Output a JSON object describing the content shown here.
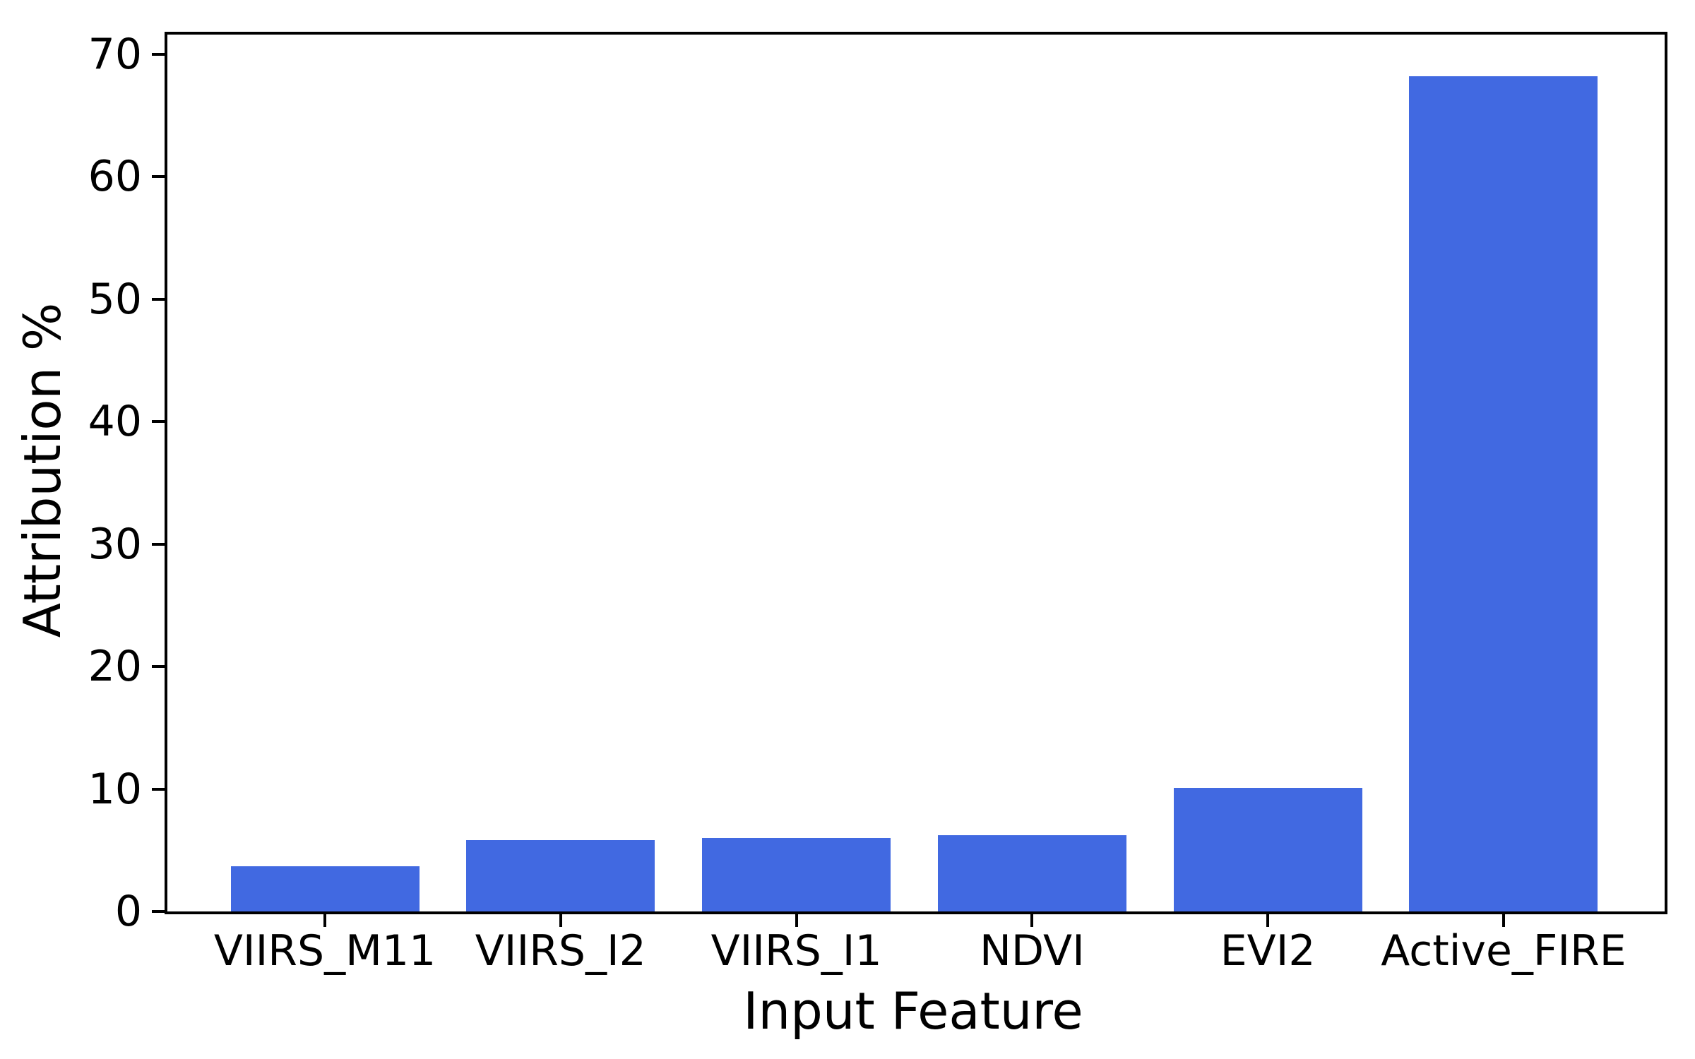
{
  "chart_data": {
    "type": "bar",
    "categories": [
      "VIIRS_M11",
      "VIIRS_I2",
      "VIIRS_I1",
      "NDVI",
      "EVI2",
      "Active_FIRE"
    ],
    "values": [
      3.7,
      5.8,
      6.0,
      6.2,
      10.1,
      68.2
    ],
    "title": "",
    "xlabel": "Input Feature",
    "ylabel": "Attribution %",
    "ylim": [
      0,
      71.6
    ],
    "yticks": [
      0,
      10,
      20,
      30,
      40,
      50,
      60,
      70
    ],
    "legend_position": "none",
    "grid": false,
    "colors": {
      "bar": "#4169E1",
      "axis": "#000000",
      "text": "#000000",
      "background": "#ffffff"
    }
  }
}
